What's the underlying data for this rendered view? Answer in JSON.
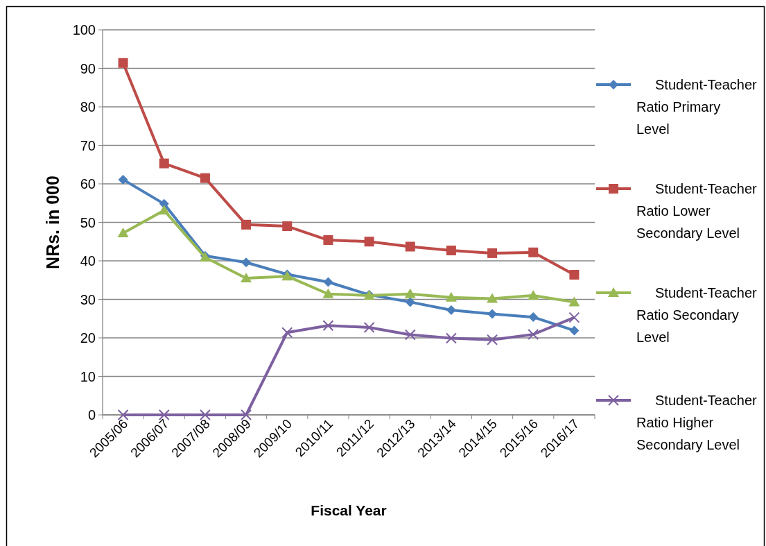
{
  "chart_data": {
    "type": "line",
    "xlabel": "Fiscal Year",
    "ylabel": "NRs. in 000",
    "categories": [
      "2005/06",
      "2006/07",
      "2007/08",
      "2008/09",
      "2009/10",
      "2010/11",
      "2011/12",
      "2012/13",
      "2013/14",
      "2014/15",
      "2015/16",
      "2016/17"
    ],
    "ylim": [
      0,
      100
    ],
    "yticks": [
      0,
      10,
      20,
      30,
      40,
      50,
      60,
      70,
      80,
      90,
      100
    ],
    "grid": "y",
    "legend": "right",
    "series": [
      {
        "name": "Student-Teacher Ratio Primary Level",
        "color": "#4a7ebb",
        "marker": "diamond",
        "values": [
          61.1,
          54.8,
          41.3,
          39.6,
          36.5,
          34.5,
          31.2,
          29.3,
          27.2,
          26.2,
          25.4,
          21.9
        ]
      },
      {
        "name": "Student-Teacher Ratio Lower Secondary Level",
        "color": "#be4b48",
        "marker": "square",
        "values": [
          91.4,
          65.3,
          61.5,
          49.4,
          49.0,
          45.4,
          45.0,
          43.7,
          42.7,
          42.0,
          42.2,
          36.4
        ]
      },
      {
        "name": "Student-Teacher Ratio Secondary Level",
        "color": "#98b954",
        "marker": "triangle",
        "values": [
          47.2,
          53.1,
          40.9,
          35.5,
          36.0,
          31.4,
          31.0,
          31.4,
          30.5,
          30.2,
          31.0,
          29.3
        ]
      },
      {
        "name": "Student-Teacher Ratio Higher Secondary Level",
        "color": "#7d60a0",
        "marker": "cross",
        "values": [
          0,
          0,
          0,
          0,
          21.4,
          23.2,
          22.7,
          20.8,
          19.9,
          19.5,
          20.9,
          25.3
        ]
      }
    ]
  }
}
